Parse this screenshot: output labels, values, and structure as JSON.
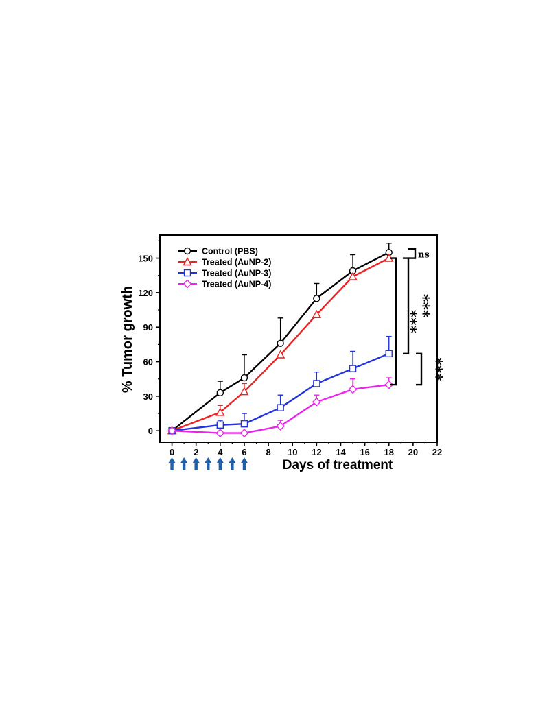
{
  "chart_data": {
    "type": "line",
    "title": "",
    "xlabel": "Days of treatment",
    "ylabel": "% Tumor growth",
    "xlim": [
      -1,
      22
    ],
    "ylim": [
      -10,
      170
    ],
    "xticks": [
      "0",
      "2",
      "4",
      "6",
      "8",
      "10",
      "12",
      "14",
      "16",
      "18",
      "20",
      "22"
    ],
    "yticks": [
      "0",
      "30",
      "60",
      "90",
      "120",
      "150"
    ],
    "grid": false,
    "legend_position": "top-left",
    "series": [
      {
        "name": "Control (PBS)",
        "color": "#000000",
        "marker": "circle",
        "x": [
          0,
          4,
          6,
          9,
          12,
          15,
          18
        ],
        "y": [
          0,
          33,
          46,
          76,
          115,
          139,
          155
        ],
        "err": [
          0,
          10,
          20,
          22,
          13,
          14,
          8
        ]
      },
      {
        "name": "Treated (AuNP-2)",
        "color": "#ee2222",
        "marker": "triangle",
        "x": [
          0,
          4,
          6,
          9,
          12,
          15,
          18
        ],
        "y": [
          0,
          16,
          34,
          66,
          101,
          134,
          150
        ],
        "err": [
          0,
          6,
          7,
          0,
          0,
          0,
          0
        ]
      },
      {
        "name": "Treated (AuNP-3)",
        "color": "#2233dd",
        "marker": "square",
        "x": [
          0,
          4,
          6,
          9,
          12,
          15,
          18
        ],
        "y": [
          0,
          5,
          6,
          20,
          41,
          54,
          67
        ],
        "err": [
          0,
          4,
          9,
          11,
          10,
          15,
          15
        ]
      },
      {
        "name": "Treated (AuNP-4)",
        "color": "#ee22ee",
        "marker": "diamond",
        "x": [
          0,
          4,
          6,
          9,
          12,
          15,
          18
        ],
        "y": [
          0,
          -2,
          -2,
          4,
          25,
          36,
          40
        ],
        "err": [
          0,
          0,
          0,
          5,
          6,
          9,
          6
        ]
      }
    ],
    "annotations": [
      {
        "label": "ns",
        "between": [
          "Control (PBS)",
          "Treated (AuNP-2)"
        ]
      },
      {
        "label": "***",
        "between": [
          "Treated (AuNP-2)",
          "Treated (AuNP-3)"
        ]
      },
      {
        "label": "***",
        "between": [
          "Treated (AuNP-2)",
          "Treated (AuNP-4)"
        ]
      },
      {
        "label": "***",
        "between": [
          "Treated (AuNP-3)",
          "Treated (AuNP-4)"
        ]
      }
    ],
    "dosing_days": [
      0,
      1,
      2,
      3,
      4,
      5,
      6
    ],
    "arrow_color": "#1f5fa8"
  }
}
